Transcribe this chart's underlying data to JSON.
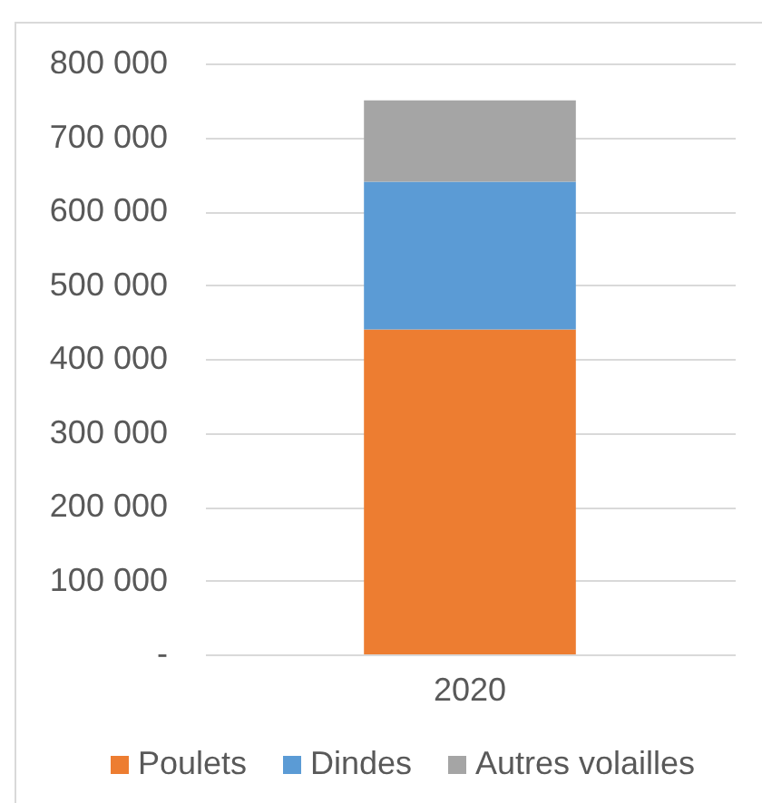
{
  "chart_data": {
    "type": "bar",
    "categories": [
      "2020"
    ],
    "series": [
      {
        "name": "Poulets",
        "color": "#ed7d31",
        "values": [
          440000
        ]
      },
      {
        "name": "Dindes",
        "color": "#5b9bd5",
        "values": [
          200000
        ]
      },
      {
        "name": "Autres volailles",
        "color": "#a5a5a5",
        "values": [
          110000
        ]
      }
    ],
    "stacked": true,
    "ylim": [
      0,
      800000
    ],
    "yticks": [
      {
        "value": 0,
        "label": "-"
      },
      {
        "value": 100000,
        "label": "100 000"
      },
      {
        "value": 200000,
        "label": "200 000"
      },
      {
        "value": 300000,
        "label": "300 000"
      },
      {
        "value": 400000,
        "label": "400 000"
      },
      {
        "value": 500000,
        "label": "500 000"
      },
      {
        "value": 600000,
        "label": "600 000"
      },
      {
        "value": 700000,
        "label": "700 000"
      },
      {
        "value": 800000,
        "label": "800 000"
      }
    ],
    "grid": "y",
    "legend": "bottom"
  }
}
